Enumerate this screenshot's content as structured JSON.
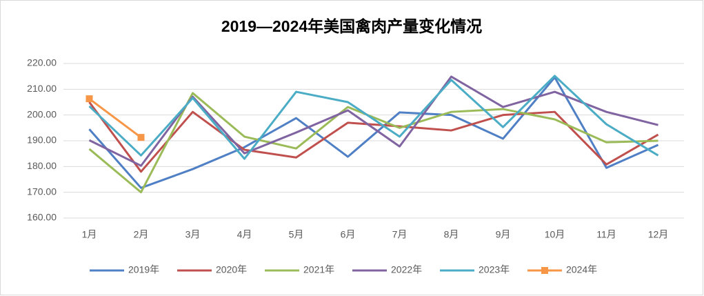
{
  "chart_data": {
    "type": "line",
    "title": "2019—2024年美国禽肉产量变化情况",
    "categories": [
      "1月",
      "2月",
      "3月",
      "4月",
      "5月",
      "6月",
      "7月",
      "8月",
      "9月",
      "10月",
      "11月",
      "12月"
    ],
    "ylim": [
      160,
      220
    ],
    "yticks": [
      {
        "value": 160,
        "label": "160.00"
      },
      {
        "value": 170,
        "label": "170.00"
      },
      {
        "value": 180,
        "label": "180.00"
      },
      {
        "value": 190,
        "label": "190.00"
      },
      {
        "value": 200,
        "label": "200.00"
      },
      {
        "value": 210,
        "label": "210.00"
      },
      {
        "value": 220,
        "label": "220.00"
      }
    ],
    "grid": true,
    "legend": "bottom",
    "series": [
      {
        "name": "2019年",
        "color": "#4f7fc4",
        "values": [
          194.5,
          171.7,
          179,
          187.5,
          198.8,
          183.8,
          201,
          200,
          190.8,
          214.6,
          179.5,
          188.4
        ]
      },
      {
        "name": "2020年",
        "color": "#c0504d",
        "values": [
          205,
          178,
          201.2,
          186.5,
          183.5,
          197,
          195.6,
          194,
          200,
          201.2,
          180.8,
          192.4
        ]
      },
      {
        "name": "2021年",
        "color": "#9bbb59",
        "values": [
          186.8,
          170,
          208.5,
          191.6,
          187,
          203.1,
          195,
          201.2,
          202.3,
          198.3,
          189.4,
          190
        ]
      },
      {
        "name": "2022年",
        "color": "#8064a2",
        "values": [
          190.2,
          180.3,
          207.1,
          185.1,
          193.2,
          201.8,
          187.8,
          214.9,
          203.1,
          209,
          201.2,
          196.1
        ]
      },
      {
        "name": "2023年",
        "color": "#4bacc6",
        "values": [
          203.4,
          184.3,
          206.6,
          183,
          209,
          205,
          191.6,
          213.6,
          195.3,
          215.2,
          196.4,
          184.3
        ]
      },
      {
        "name": "2024年",
        "color": "#f79646",
        "marker": "square",
        "values": [
          206.3,
          191.3,
          null,
          null,
          null,
          null,
          null,
          null,
          null,
          null,
          null,
          null
        ]
      }
    ]
  }
}
